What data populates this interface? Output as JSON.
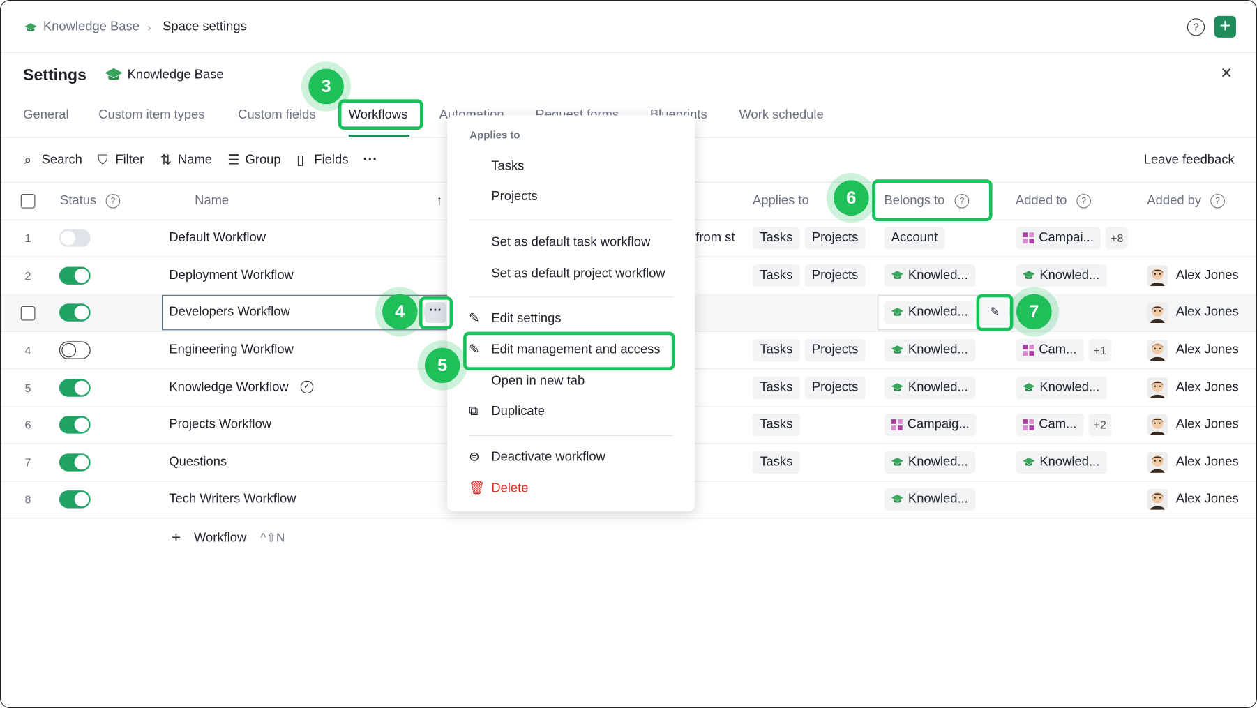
{
  "breadcrumb": {
    "space": "Knowledge Base",
    "page": "Space settings"
  },
  "header": {
    "title": "Settings",
    "space": "Knowledge Base"
  },
  "tabs": [
    "General",
    "Custom item types",
    "Custom fields",
    "Workflows",
    "Automation",
    "Request forms",
    "Blueprints",
    "Work schedule"
  ],
  "toolbar": [
    "Search",
    "Filter",
    "Name",
    "Group",
    "Fields"
  ],
  "feedback": "Leave feedback",
  "columns": {
    "status": "Status",
    "name": "Name",
    "applies": "Applies to",
    "belongs": "Belongs to",
    "added_to": "Added to",
    "added_by": "Added by"
  },
  "rows": [
    {
      "number": "1",
      "status": "disabled",
      "name": "Default Workflow",
      "description": ", from st",
      "applies": [
        "Tasks",
        "Projects"
      ],
      "belongs": {
        "icon": null,
        "text": "Account"
      },
      "added_to": [
        {
          "icon": "campaign",
          "text": "Campai..."
        }
      ],
      "more": "+8",
      "added_by": null
    },
    {
      "number": "2",
      "status": "on",
      "name": "Deployment Workflow",
      "applies": [
        "Tasks",
        "Projects"
      ],
      "belongs": {
        "icon": "knowledge",
        "text": "Knowled..."
      },
      "added_to": [
        {
          "icon": "knowledge",
          "text": "Knowled..."
        }
      ],
      "added_by": "Alex Jones"
    },
    {
      "number": null,
      "status": "on",
      "name": "Developers Workflow",
      "applies": [],
      "belongs": {
        "icon": "knowledge",
        "text": "Knowled..."
      },
      "added_to": [],
      "added_by": "Alex Jones"
    },
    {
      "number": "4",
      "status": "off",
      "name": "Engineering Workflow",
      "applies": [
        "Tasks",
        "Projects"
      ],
      "belongs": {
        "icon": "knowledge",
        "text": "Knowled..."
      },
      "added_to": [
        {
          "icon": "campaign",
          "text": "Cam..."
        }
      ],
      "more": "+1",
      "added_by": "Alex Jones"
    },
    {
      "number": "5",
      "status": "on",
      "name": "Knowledge Workflow",
      "verified": true,
      "applies": [
        "Tasks",
        "Projects"
      ],
      "belongs": {
        "icon": "knowledge",
        "text": "Knowled..."
      },
      "added_to": [
        {
          "icon": "knowledge",
          "text": "Knowled..."
        }
      ],
      "added_by": "Alex Jones"
    },
    {
      "number": "6",
      "status": "on",
      "name": "Projects Workflow",
      "applies": [
        "Tasks"
      ],
      "belongs": {
        "icon": "campaign",
        "text": "Campaig..."
      },
      "added_to": [
        {
          "icon": "campaign",
          "text": "Cam..."
        }
      ],
      "more": "+2",
      "added_by": "Alex Jones"
    },
    {
      "number": "7",
      "status": "on",
      "name": "Questions",
      "applies": [
        "Tasks"
      ],
      "belongs": {
        "icon": "knowledge",
        "text": "Knowled..."
      },
      "added_to": [
        {
          "icon": "knowledge",
          "text": "Knowled..."
        }
      ],
      "added_by": "Alex Jones"
    },
    {
      "number": "8",
      "status": "on",
      "name": "Tech Writers Workflow",
      "applies": [],
      "belongs": {
        "icon": "knowledge",
        "text": "Knowled..."
      },
      "added_to": [],
      "added_by": "Alex Jones"
    }
  ],
  "add_row": {
    "label": "Workflow",
    "shortcut": "^⇧N"
  },
  "menu": {
    "section": "Applies to",
    "applies": [
      "Tasks",
      "Projects"
    ],
    "defaults": [
      "Set as default task workflow",
      "Set as default project workflow"
    ],
    "actions": [
      "Edit settings",
      "Edit management and access",
      "Open in new tab",
      "Duplicate"
    ],
    "danger": [
      "Deactivate workflow",
      "Delete"
    ]
  },
  "callouts": [
    "3",
    "4",
    "5",
    "6",
    "7"
  ]
}
